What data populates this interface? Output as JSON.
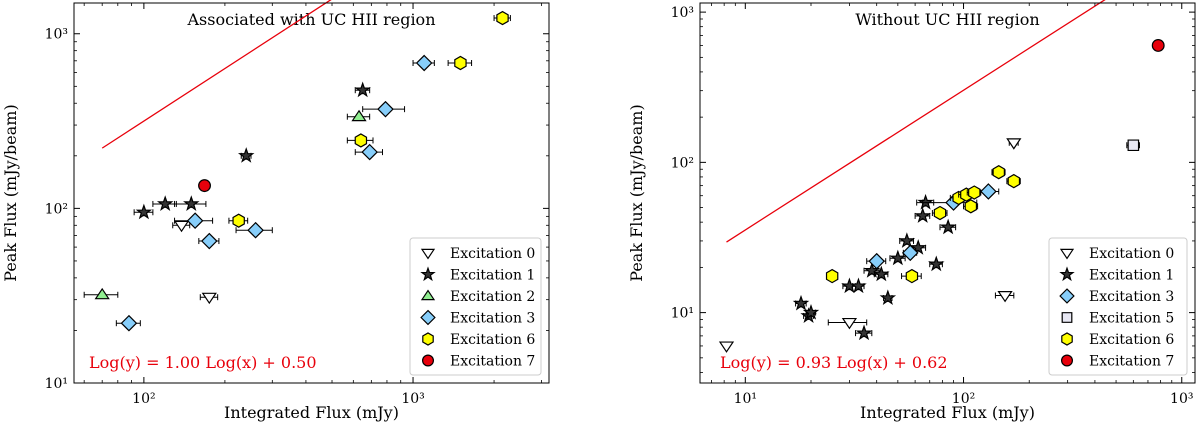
{
  "chart_data": [
    {
      "type": "scatter",
      "title": "Associated with UC HII region",
      "xlabel": "Integrated Flux (mJy)",
      "ylabel": "Peak Flux (mJy/beam)",
      "xscale": "log",
      "yscale": "log",
      "xlim": [
        55,
        3200
      ],
      "ylim": [
        10,
        1500
      ],
      "x_ticks": [
        {
          "value": 100,
          "label": "10²"
        },
        {
          "value": 1000,
          "label": "10³"
        }
      ],
      "y_ticks": [
        {
          "value": 10,
          "label": "10¹"
        },
        {
          "value": 100,
          "label": "10²"
        },
        {
          "value": 1000,
          "label": "10³"
        }
      ],
      "fit": {
        "slope": 1.0,
        "intercept": 0.5,
        "x_range": [
          70,
          2150
        ],
        "label": "Log(y) = 1.00 Log(x) + 0.50",
        "color": "#e8000b"
      },
      "legend_position": "lower right",
      "series": [
        {
          "name": "Excitation 0",
          "marker": "triangle-down",
          "fill": "#ffffff",
          "points": [
            {
              "x": 138,
              "y": 80,
              "xerr": 10
            },
            {
              "x": 175,
              "y": 31,
              "xerr": 13
            }
          ]
        },
        {
          "name": "Excitation 1",
          "marker": "star",
          "fill": "#333333",
          "points": [
            {
              "x": 100,
              "y": 95,
              "xerr": 8
            },
            {
              "x": 120,
              "y": 106,
              "xerr": 12
            },
            {
              "x": 150,
              "y": 106,
              "xerr": 20
            },
            {
              "x": 240,
              "y": 200,
              "xerr": 10
            },
            {
              "x": 650,
              "y": 475,
              "xerr": 40
            }
          ]
        },
        {
          "name": "Excitation 2",
          "marker": "triangle-up",
          "fill": "#90ee90",
          "points": [
            {
              "x": 70,
              "y": 32,
              "xerr": 10
            },
            {
              "x": 630,
              "y": 335,
              "xerr": 60
            }
          ]
        },
        {
          "name": "Excitation 3",
          "marker": "diamond",
          "fill": "#87cefa",
          "points": [
            {
              "x": 88,
              "y": 22,
              "xerr": 9
            },
            {
              "x": 155,
              "y": 85,
              "xerr": 25
            },
            {
              "x": 175,
              "y": 65,
              "xerr": 15
            },
            {
              "x": 260,
              "y": 75,
              "xerr": 40
            },
            {
              "x": 690,
              "y": 210,
              "xerr": 80
            },
            {
              "x": 790,
              "y": 370,
              "xerr": 140
            },
            {
              "x": 1100,
              "y": 680,
              "xerr": 100
            }
          ]
        },
        {
          "name": "Excitation 6",
          "marker": "hexagon",
          "fill": "#ffff00",
          "points": [
            {
              "x": 225,
              "y": 85,
              "xerr": 18
            },
            {
              "x": 640,
              "y": 245,
              "xerr": 70
            },
            {
              "x": 1500,
              "y": 680,
              "xerr": 150
            },
            {
              "x": 2150,
              "y": 1230,
              "xerr": 150
            }
          ]
        },
        {
          "name": "Excitation 7",
          "marker": "circle",
          "fill": "#e8000b",
          "points": [
            {
              "x": 168,
              "y": 135,
              "xerr": 0
            }
          ]
        }
      ]
    },
    {
      "type": "scatter",
      "title": "Without UC HII region",
      "xlabel": "Integrated Flux (mJy)",
      "ylabel": "Peak Flux (mJy/beam)",
      "xscale": "log",
      "yscale": "log",
      "xlim": [
        6.2,
        1150
      ],
      "ylim": [
        3.4,
        1150
      ],
      "x_ticks": [
        {
          "value": 10,
          "label": "10¹"
        },
        {
          "value": 100,
          "label": "10²"
        },
        {
          "value": 1000,
          "label": "10³"
        }
      ],
      "y_ticks": [
        {
          "value": 10,
          "label": "10¹"
        },
        {
          "value": 100,
          "label": "10²"
        },
        {
          "value": 1000,
          "label": "10³"
        }
      ],
      "fit": {
        "slope": 0.93,
        "intercept": 0.62,
        "x_range": [
          8.2,
          780
        ],
        "label": "Log(y) = 0.93 Log(x) + 0.62",
        "color": "#e8000b"
      },
      "legend_position": "lower right",
      "series": [
        {
          "name": "Excitation 0",
          "marker": "triangle-down",
          "fill": "#ffffff",
          "points": [
            {
              "x": 8.2,
              "y": 6.0,
              "xerr": 0
            },
            {
              "x": 30,
              "y": 8.6,
              "xerr": 6
            },
            {
              "x": 170,
              "y": 135,
              "xerr": 8
            },
            {
              "x": 155,
              "y": 13,
              "xerr": 15
            }
          ]
        },
        {
          "name": "Excitation 1",
          "marker": "star",
          "fill": "#333333",
          "points": [
            {
              "x": 18,
              "y": 11.5,
              "xerr": 1
            },
            {
              "x": 19.5,
              "y": 9.5,
              "xerr": 1
            },
            {
              "x": 20,
              "y": 10,
              "xerr": 1
            },
            {
              "x": 30,
              "y": 15,
              "xerr": 2
            },
            {
              "x": 33,
              "y": 15,
              "xerr": 2
            },
            {
              "x": 35,
              "y": 7.3,
              "xerr": 3
            },
            {
              "x": 38,
              "y": 19,
              "xerr": 3
            },
            {
              "x": 42,
              "y": 18,
              "xerr": 3
            },
            {
              "x": 45,
              "y": 12.5,
              "xerr": 2
            },
            {
              "x": 50,
              "y": 23,
              "xerr": 4
            },
            {
              "x": 55,
              "y": 30,
              "xerr": 4
            },
            {
              "x": 62,
              "y": 27,
              "xerr": 5
            },
            {
              "x": 65,
              "y": 44,
              "xerr": 5
            },
            {
              "x": 67,
              "y": 54,
              "xerr": 6
            },
            {
              "x": 75,
              "y": 21,
              "xerr": 5
            },
            {
              "x": 85,
              "y": 37,
              "xerr": 7
            }
          ]
        },
        {
          "name": "Excitation 3",
          "marker": "diamond",
          "fill": "#87cefa",
          "points": [
            {
              "x": 40,
              "y": 22,
              "xerr": 4
            },
            {
              "x": 57,
              "y": 25,
              "xerr": 4
            },
            {
              "x": 90,
              "y": 54,
              "xerr": 25
            },
            {
              "x": 130,
              "y": 64,
              "xerr": 15
            }
          ]
        },
        {
          "name": "Excitation 5",
          "marker": "square",
          "fill": "#e8e8f4",
          "points": [
            {
              "x": 600,
              "y": 130,
              "xerr": 40
            }
          ]
        },
        {
          "name": "Excitation 6",
          "marker": "hexagon",
          "fill": "#ffff00",
          "points": [
            {
              "x": 25,
              "y": 17.5,
              "xerr": 1
            },
            {
              "x": 58,
              "y": 17.5,
              "xerr": 6
            },
            {
              "x": 78,
              "y": 46,
              "xerr": 6
            },
            {
              "x": 95,
              "y": 58,
              "xerr": 8
            },
            {
              "x": 103,
              "y": 61,
              "xerr": 8
            },
            {
              "x": 108,
              "y": 51,
              "xerr": 8
            },
            {
              "x": 112,
              "y": 63,
              "xerr": 8
            },
            {
              "x": 145,
              "y": 86,
              "xerr": 10
            },
            {
              "x": 170,
              "y": 75,
              "xerr": 12
            }
          ]
        },
        {
          "name": "Excitation 7",
          "marker": "circle",
          "fill": "#e8000b",
          "points": [
            {
              "x": 780,
              "y": 600,
              "xerr": 0
            }
          ]
        }
      ]
    }
  ]
}
